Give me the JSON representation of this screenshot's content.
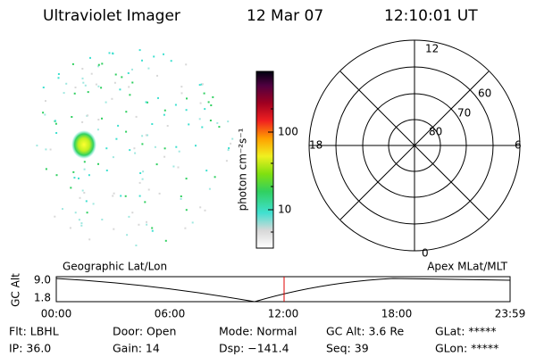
{
  "header": {
    "instrument": "Ultraviolet Imager",
    "date": "12 Mar 07",
    "time": "12:10:01 UT"
  },
  "colorbar": {
    "label": "photon cm⁻²s⁻¹",
    "ticks": [
      "100",
      "10"
    ]
  },
  "polar": {
    "mlt_labels": {
      "top": "12",
      "bottom": "0",
      "left": "18",
      "right": "6"
    },
    "lat_labels": [
      "60",
      "70",
      "80"
    ]
  },
  "strip": {
    "left_title": "Geographic Lat/Lon",
    "right_title": "Apex MLat/MLT",
    "y_label": "GC Alt",
    "y_ticks": [
      "9.0",
      "1.8"
    ],
    "x_ticks": [
      "00:00",
      "06:00",
      "12:00",
      "18:00",
      "23:59"
    ]
  },
  "status": {
    "rows": [
      [
        "Flt: LBHL",
        "Door: Open",
        "Mode: Normal",
        "GC Alt: 3.6 Re",
        "GLat: *****"
      ],
      [
        "IP: 36.0",
        "Gain: 14",
        "Dsp: −141.4",
        "Seq: 39",
        "GLon: *****"
      ]
    ]
  }
}
